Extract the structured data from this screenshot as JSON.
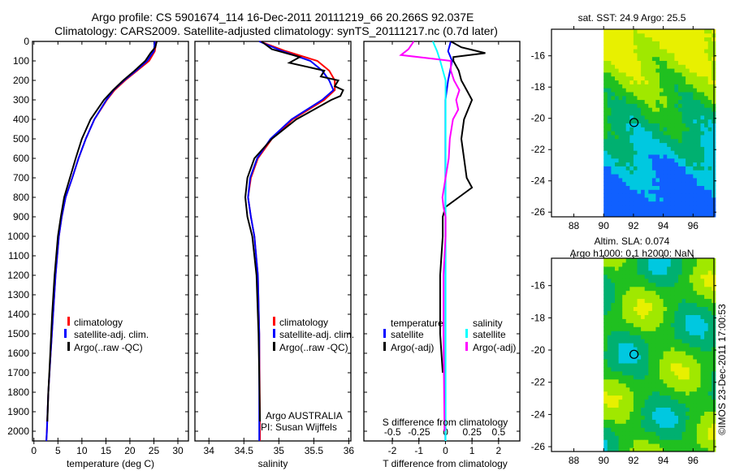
{
  "title": {
    "line1": "Argo profile: CS 5901674_114 16-Dec-2011 20111219_66 20.266S 92.037E",
    "line2": "Climatology: CARS2009. Satellite-adjusted climatology: synTS_20111217.nc (0.7d later)"
  },
  "credit": "©IMOS 23-Dec-2011 17:00:53",
  "colors": {
    "climatology": "#ff0000",
    "satellite": "#0000ff",
    "argo": "#000000",
    "s_satellite": "#00ffff",
    "s_argo": "#ff00ff"
  },
  "chart_data": [
    {
      "type": "line",
      "name": "temperature-profile",
      "xlabel": "temperature (deg C)",
      "ylabel": "",
      "xlim": [
        -0.3,
        32.2
      ],
      "ylim": [
        2050,
        0
      ],
      "xticks": [
        0,
        5,
        10,
        15,
        20,
        25,
        30
      ],
      "yticks": [
        0,
        100,
        200,
        300,
        400,
        500,
        600,
        700,
        800,
        900,
        1000,
        1100,
        1200,
        1300,
        1400,
        1500,
        1600,
        1700,
        1800,
        1900,
        2000
      ],
      "legend": [
        "climatology",
        "satellite-adj. clim.",
        "Argo(..raw -QC)"
      ],
      "series": [
        {
          "name": "climatology",
          "depth": [
            0,
            50,
            100,
            150,
            200,
            250,
            300,
            400,
            500,
            600,
            700,
            800,
            900,
            1000,
            1200,
            1400,
            1600,
            1800,
            2000,
            2050
          ],
          "values": [
            25.5,
            25.2,
            24,
            21.5,
            19,
            16.8,
            15.2,
            12.6,
            10.8,
            9.3,
            8,
            6.6,
            5.8,
            5.2,
            4.5,
            4,
            3.5,
            3.0,
            2.7,
            2.6
          ]
        },
        {
          "name": "satellite-adj. clim.",
          "depth": [
            0,
            50,
            100,
            150,
            200,
            250,
            300,
            400,
            500,
            600,
            700,
            800,
            900,
            1000,
            1200,
            1400,
            1600,
            1800,
            2000,
            2050
          ],
          "values": [
            25.2,
            25.0,
            23.6,
            21.3,
            18.8,
            16.6,
            15.1,
            12.6,
            10.8,
            9.3,
            8,
            6.6,
            5.8,
            5.2,
            4.5,
            4,
            3.5,
            3.0,
            2.7,
            2.6
          ]
        },
        {
          "name": "Argo(..raw -QC)",
          "depth": [
            0,
            30,
            60,
            100,
            150,
            200,
            250,
            300,
            400,
            500,
            600,
            700,
            800,
            900,
            1000,
            1200,
            1400,
            1600,
            1800,
            1950
          ],
          "values": [
            25.6,
            25.3,
            24.3,
            23.2,
            21,
            18.6,
            16.5,
            14.6,
            11.8,
            10,
            8.7,
            7.5,
            6.3,
            5.6,
            5.0,
            4.3,
            3.8,
            3.4,
            3.0,
            2.8
          ]
        }
      ]
    },
    {
      "type": "line",
      "name": "salinity-profile",
      "xlabel": "salinity",
      "xlim": [
        33.8,
        36.03
      ],
      "ylim": [
        2050,
        0
      ],
      "xticks": [
        34,
        34.5,
        35,
        35.5,
        36
      ],
      "legend": [
        "climatology",
        "satellite-adj. clim.",
        "Argo(..raw -QC)"
      ],
      "annotation": [
        "Argo AUSTRALIA",
        "PI: Susan Wijffels"
      ],
      "series": [
        {
          "name": "climatology",
          "depth": [
            0,
            50,
            100,
            150,
            200,
            250,
            300,
            400,
            500,
            600,
            700,
            800,
            900,
            1000,
            1200,
            1500,
            2000,
            2050
          ],
          "values": [
            34.73,
            35.1,
            35.55,
            35.72,
            35.8,
            35.8,
            35.65,
            35.2,
            34.9,
            34.7,
            34.6,
            34.56,
            34.6,
            34.65,
            34.7,
            34.72,
            34.73,
            34.73
          ]
        },
        {
          "name": "satellite-adj. clim.",
          "depth": [
            0,
            50,
            100,
            150,
            200,
            250,
            300,
            400,
            500,
            600,
            700,
            800,
            900,
            1000,
            1200,
            1500,
            2000,
            2050
          ],
          "values": [
            34.72,
            35.05,
            35.45,
            35.62,
            35.72,
            35.78,
            35.62,
            35.18,
            34.88,
            34.69,
            34.59,
            34.56,
            34.6,
            34.65,
            34.7,
            34.72,
            34.72,
            34.72
          ]
        },
        {
          "name": "Argo(..raw -QC)",
          "depth": [
            0,
            40,
            80,
            110,
            150,
            180,
            200,
            230,
            250,
            280,
            300,
            400,
            500,
            600,
            700,
            800,
            900,
            1000,
            1200,
            1500,
            1950
          ],
          "values": [
            34.75,
            34.9,
            35.3,
            35.15,
            35.65,
            35.6,
            35.85,
            35.8,
            35.92,
            35.88,
            35.75,
            35.25,
            34.9,
            34.65,
            34.55,
            34.52,
            34.55,
            34.62,
            34.68,
            34.71,
            34.73
          ]
        }
      ]
    },
    {
      "type": "line",
      "name": "difference-profile",
      "xlabel": "T difference from climatology",
      "x2label": "S difference from climatology",
      "xlim": [
        -3.07,
        2.8
      ],
      "x2lim": [
        -0.77,
        0.7
      ],
      "ylim": [
        2050,
        0
      ],
      "xticks": [
        -2,
        -1,
        0,
        1,
        2
      ],
      "x2ticks": [
        -0.5,
        -0.25,
        0,
        0.25,
        0.5
      ],
      "legend_titles": [
        "temperature",
        "salinity"
      ],
      "legend": [
        "satellite",
        "Argo(-adj)",
        "satellite",
        "Argo(-adj)"
      ],
      "series": [
        {
          "name": "T satellite",
          "depth": [
            0,
            50,
            100,
            200,
            300,
            500,
            1000,
            2000,
            2050
          ],
          "values": [
            0.2,
            0.1,
            0.25,
            0.1,
            0.0,
            0.0,
            0.0,
            0.0,
            0.0
          ]
        },
        {
          "name": "T Argo(-adj)",
          "depth": [
            0,
            30,
            60,
            80,
            100,
            150,
            200,
            250,
            300,
            400,
            500,
            600,
            700,
            750,
            800,
            850,
            900,
            1000,
            1200,
            1500,
            1700
          ],
          "values": [
            0.2,
            0.6,
            1.5,
            0.3,
            0.3,
            0.5,
            0.6,
            0.8,
            1.0,
            0.7,
            0.6,
            0.7,
            0.8,
            1.0,
            0.5,
            0.0,
            -0.1,
            -0.1,
            -0.2,
            -0.2,
            -0.1
          ]
        },
        {
          "name": "S satellite",
          "depth": [
            0,
            50,
            100,
            200,
            300,
            500,
            1000,
            2000,
            2050
          ],
          "values": [
            -0.12,
            -0.08,
            -0.05,
            0.0,
            0.0,
            0.0,
            0.0,
            0.0,
            0.0
          ]
        },
        {
          "name": "S Argo(-adj)",
          "depth": [
            0,
            40,
            70,
            90,
            100,
            150,
            200,
            250,
            300,
            350,
            400,
            500,
            600,
            700,
            800,
            850,
            900,
            1000,
            1200,
            1500,
            2000
          ],
          "values": [
            -0.3,
            -0.35,
            -0.42,
            -0.1,
            0.05,
            0.05,
            0.08,
            0.13,
            0.1,
            0.12,
            0.07,
            0.04,
            0.03,
            0.0,
            -0.03,
            -0.02,
            0.0,
            0.0,
            -0.02,
            -0.02,
            -0.01
          ]
        }
      ]
    },
    {
      "type": "heatmap",
      "name": "sst-map",
      "title": "sat. SST: 24.9 Argo: 25.5",
      "xlim": [
        86.5,
        97.4
      ],
      "ylim": [
        -26.3,
        -14.3
      ],
      "xticks": [
        88,
        90,
        92,
        94,
        96
      ],
      "yticks": [
        -16,
        -18,
        -20,
        -22,
        -24,
        -26
      ],
      "data_extent_lon": [
        90,
        97.4
      ],
      "marker": {
        "lon": 92.037,
        "lat": -20.266
      }
    },
    {
      "type": "heatmap",
      "name": "sla-map",
      "title": "Altim. SLA: 0.074",
      "subtitle": "Argo h1000: 0.1 h2000: NaN",
      "xlim": [
        86.5,
        97.4
      ],
      "ylim": [
        -26.3,
        -14.3
      ],
      "xticks": [
        88,
        90,
        92,
        94,
        96
      ],
      "yticks": [
        -16,
        -18,
        -20,
        -22,
        -24,
        -26
      ],
      "data_extent_lon": [
        90,
        97.4
      ],
      "marker": {
        "lon": 92.037,
        "lat": -20.266
      }
    }
  ]
}
